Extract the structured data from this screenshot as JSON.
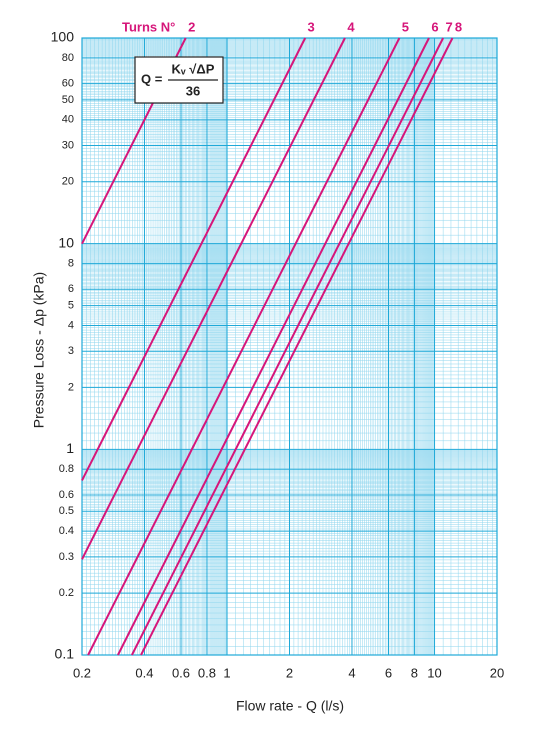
{
  "chart_data": {
    "type": "line",
    "log_x": true,
    "log_y": true,
    "grid": true,
    "minor_grid": true,
    "x_label": "Flow rate - Q (l/s)",
    "y_label": "Pressure Loss - Δp (kPa)",
    "legend_title": "Turns N°",
    "formula": {
      "lhs": "Q =",
      "numerator": "Kᵥ √ΔP",
      "denominator": "36"
    },
    "xlim": [
      0.2,
      20
    ],
    "ylim": [
      0.1,
      100
    ],
    "xticks": [
      0.2,
      0.4,
      0.6,
      0.8,
      1,
      2,
      4,
      6,
      8,
      10,
      20
    ],
    "yticks": [
      0.1,
      0.2,
      0.3,
      0.4,
      0.5,
      0.6,
      0.8,
      1,
      2,
      3,
      4,
      5,
      6,
      8,
      10,
      20,
      30,
      40,
      50,
      60,
      80,
      100
    ],
    "color": "#d6167a",
    "series": [
      {
        "name": "2",
        "x": [
          0.2,
          0.632
        ],
        "values": [
          10,
          100
        ]
      },
      {
        "name": "3",
        "x": [
          0.2,
          2.38
        ],
        "values": [
          0.706,
          100
        ]
      },
      {
        "name": "4",
        "x": [
          0.2,
          3.7
        ],
        "values": [
          0.292,
          100
        ]
      },
      {
        "name": "5",
        "x": [
          0.214,
          6.77
        ],
        "values": [
          0.1,
          100
        ]
      },
      {
        "name": "6",
        "x": [
          0.298,
          9.4
        ],
        "values": [
          0.1,
          100
        ]
      },
      {
        "name": "7",
        "x": [
          0.348,
          11.0
        ],
        "values": [
          0.1,
          100
        ]
      },
      {
        "name": "8",
        "x": [
          0.385,
          12.2
        ],
        "values": [
          0.1,
          100
        ]
      }
    ]
  }
}
